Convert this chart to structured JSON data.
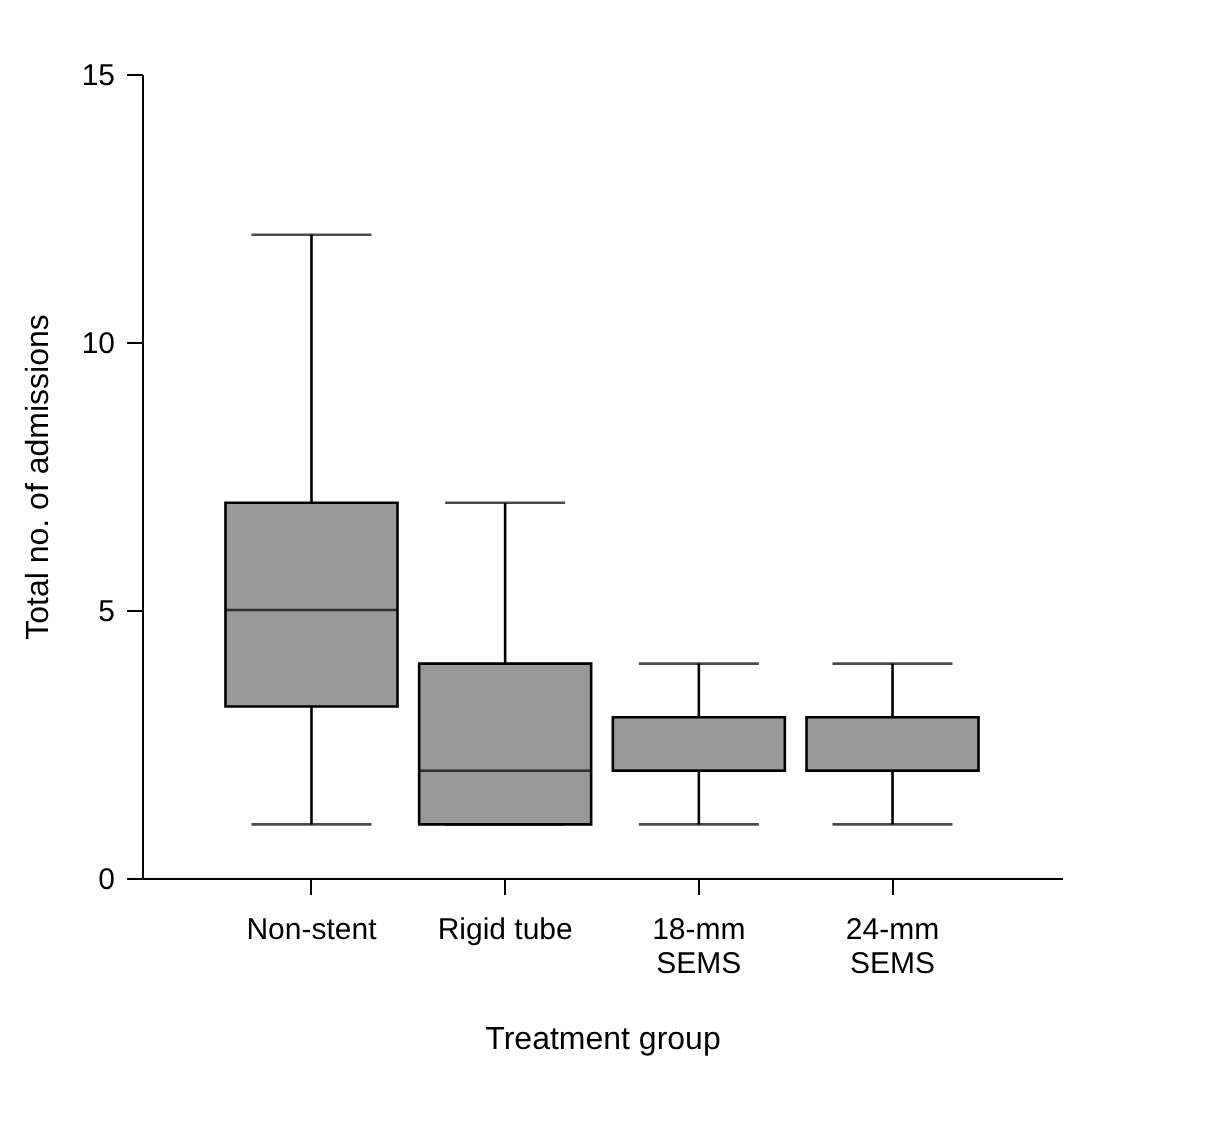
{
  "chart_data": {
    "type": "box",
    "xlabel": "Treatment group",
    "ylabel": "Total no. of admissions",
    "categories": [
      "Non-stent",
      "Rigid tube",
      "18-mm\nSEMS",
      "24-mm\nSEMS"
    ],
    "color": "#999999",
    "boxes": [
      {
        "low": 1,
        "q1": 3.2,
        "median": 5,
        "q3": 7,
        "high": 12
      },
      {
        "low": 1,
        "q1": 1,
        "median": 2,
        "q3": 4,
        "high": 7
      },
      {
        "low": 1,
        "q1": 2,
        "median": 2,
        "q3": 3,
        "high": 4
      },
      {
        "low": 1,
        "q1": 2,
        "median": 2,
        "q3": 3,
        "high": 4
      }
    ],
    "ylim": [
      0,
      15
    ],
    "yticks": [
      0,
      5,
      10,
      15
    ],
    "grid": false
  }
}
